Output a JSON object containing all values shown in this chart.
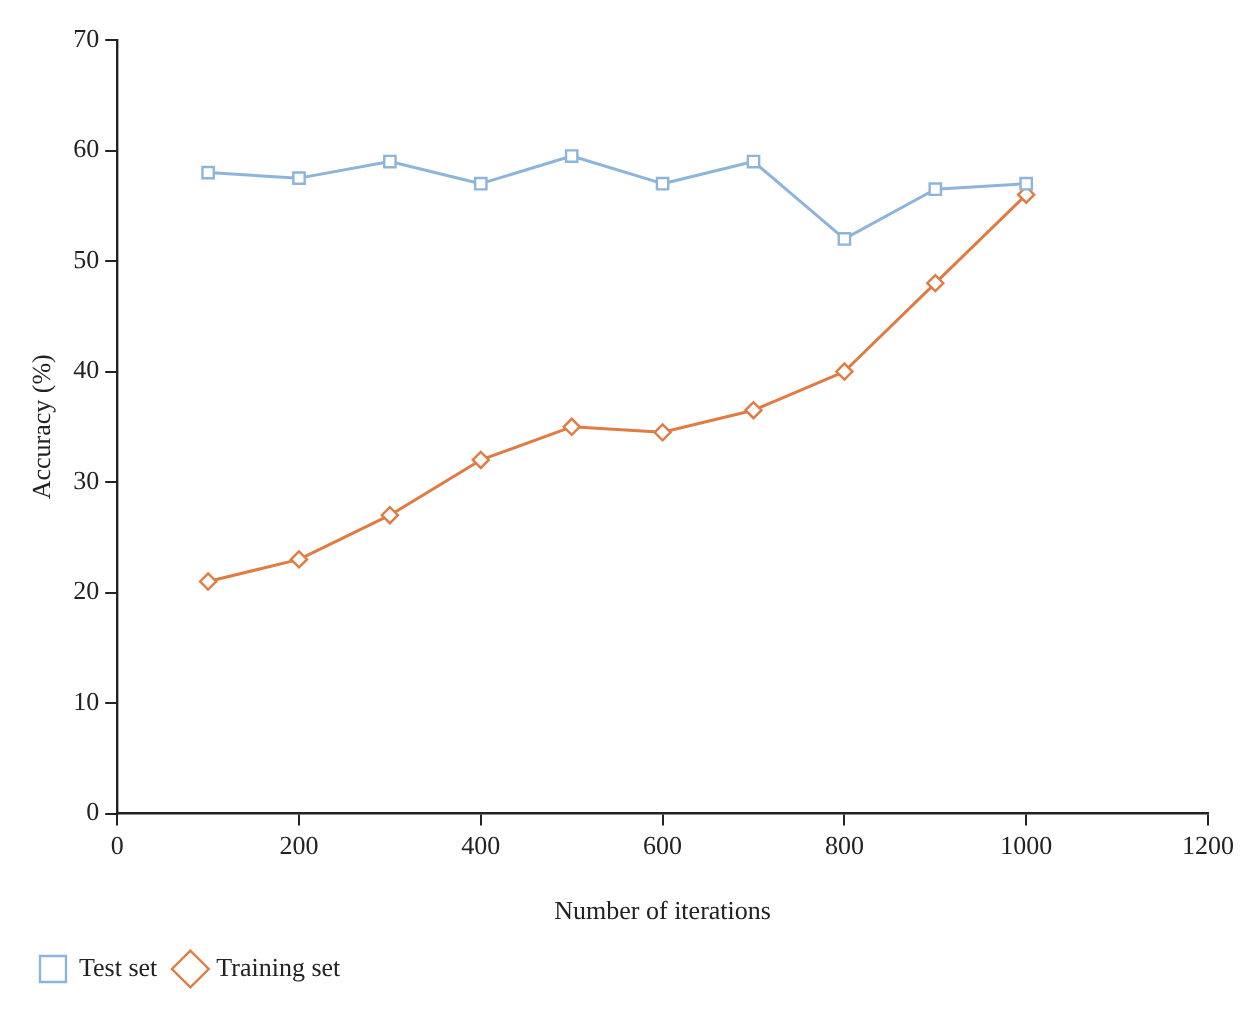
{
  "chart_data": {
    "type": "line",
    "xlabel": "Number of iterations",
    "ylabel": "Accuracy (%)",
    "x": [
      100,
      200,
      300,
      400,
      500,
      600,
      700,
      800,
      900,
      1000
    ],
    "series": [
      {
        "name": "Test set",
        "color": "#8fb4d9",
        "marker": "square",
        "values": [
          58,
          57.5,
          59,
          57,
          59.5,
          57,
          59,
          52,
          56.5,
          57
        ]
      },
      {
        "name": "Training set",
        "color": "#e07b43",
        "marker": "diamond",
        "values": [
          21,
          23,
          27,
          32,
          35,
          34.5,
          36.5,
          40,
          48,
          56
        ]
      }
    ],
    "xlim": [
      0,
      1200
    ],
    "xticks": [
      0,
      200,
      400,
      600,
      800,
      1000,
      1200
    ],
    "ylim": [
      0,
      70
    ],
    "yticks": [
      0,
      10,
      20,
      30,
      40,
      50,
      60,
      70
    ],
    "grid": false,
    "legend": "bottom left",
    "line_style": "solid"
  }
}
